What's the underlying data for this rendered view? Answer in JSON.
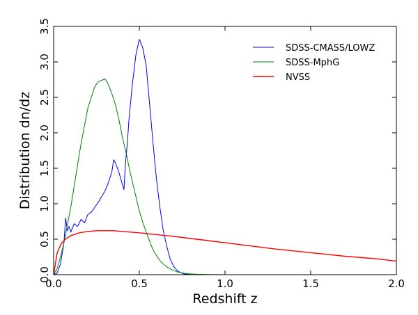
{
  "chart_data": {
    "type": "line",
    "xlabel": "Redshift z",
    "ylabel": "Distribution dn/dz",
    "xlim": [
      0.0,
      2.0
    ],
    "ylim": [
      0.0,
      3.5
    ],
    "xticks": [
      "0.0",
      "0.5",
      "1.0",
      "1.5",
      "2.0"
    ],
    "yticks": [
      "0.0",
      "0.5",
      "1.0",
      "1.5",
      "2.0",
      "2.5",
      "3.0",
      "3.5"
    ],
    "grid": false,
    "legend_position": "top-right",
    "series": [
      {
        "name": "SDSS-CMASS/LOWZ",
        "color": "#0000ff",
        "x": [
          0.0,
          0.02,
          0.04,
          0.06,
          0.07,
          0.08,
          0.09,
          0.1,
          0.12,
          0.14,
          0.16,
          0.18,
          0.2,
          0.22,
          0.24,
          0.26,
          0.28,
          0.3,
          0.32,
          0.34,
          0.35,
          0.36,
          0.38,
          0.4,
          0.41,
          0.42,
          0.43,
          0.44,
          0.46,
          0.48,
          0.5,
          0.52,
          0.54,
          0.56,
          0.58,
          0.6,
          0.62,
          0.64,
          0.66,
          0.68,
          0.7,
          0.72,
          0.74,
          0.76,
          0.8,
          0.85,
          0.9,
          1.0
        ],
        "y": [
          0.0,
          0.02,
          0.15,
          0.45,
          0.8,
          0.62,
          0.68,
          0.6,
          0.72,
          0.68,
          0.78,
          0.73,
          0.85,
          0.88,
          0.95,
          1.02,
          1.1,
          1.18,
          1.3,
          1.45,
          1.62,
          1.58,
          1.45,
          1.28,
          1.2,
          1.6,
          1.85,
          2.2,
          2.7,
          3.1,
          3.32,
          3.2,
          2.95,
          2.4,
          1.85,
          1.35,
          0.95,
          0.62,
          0.4,
          0.22,
          0.12,
          0.06,
          0.03,
          0.01,
          0.005,
          0.0,
          0.0,
          0.0
        ]
      },
      {
        "name": "SDSS-MphG",
        "color": "#008000",
        "x": [
          0.0,
          0.02,
          0.04,
          0.06,
          0.08,
          0.1,
          0.12,
          0.14,
          0.16,
          0.18,
          0.2,
          0.22,
          0.24,
          0.26,
          0.28,
          0.3,
          0.32,
          0.34,
          0.36,
          0.38,
          0.4,
          0.42,
          0.44,
          0.46,
          0.48,
          0.5,
          0.52,
          0.54,
          0.56,
          0.58,
          0.6,
          0.62,
          0.64,
          0.66,
          0.68,
          0.7,
          0.72,
          0.74,
          0.76,
          0.78,
          0.8,
          0.85,
          0.9,
          1.0
        ],
        "y": [
          0.0,
          0.08,
          0.25,
          0.45,
          0.7,
          0.95,
          1.25,
          1.55,
          1.85,
          2.1,
          2.35,
          2.5,
          2.65,
          2.72,
          2.74,
          2.76,
          2.68,
          2.55,
          2.4,
          2.2,
          1.95,
          1.75,
          1.52,
          1.3,
          1.1,
          0.9,
          0.74,
          0.6,
          0.47,
          0.35,
          0.27,
          0.2,
          0.15,
          0.11,
          0.08,
          0.06,
          0.04,
          0.03,
          0.02,
          0.015,
          0.01,
          0.005,
          0.002,
          0.0
        ]
      },
      {
        "name": "NVSS",
        "color": "#ff0000",
        "x": [
          0.0,
          0.02,
          0.04,
          0.06,
          0.08,
          0.1,
          0.15,
          0.2,
          0.25,
          0.3,
          0.35,
          0.4,
          0.5,
          0.6,
          0.7,
          0.8,
          0.9,
          1.0,
          1.1,
          1.2,
          1.3,
          1.4,
          1.5,
          1.6,
          1.7,
          1.8,
          1.9,
          2.0
        ],
        "y": [
          0.0,
          0.3,
          0.42,
          0.48,
          0.52,
          0.55,
          0.59,
          0.61,
          0.62,
          0.62,
          0.62,
          0.61,
          0.59,
          0.565,
          0.54,
          0.51,
          0.48,
          0.45,
          0.42,
          0.39,
          0.36,
          0.335,
          0.31,
          0.285,
          0.26,
          0.24,
          0.22,
          0.19
        ]
      }
    ]
  }
}
